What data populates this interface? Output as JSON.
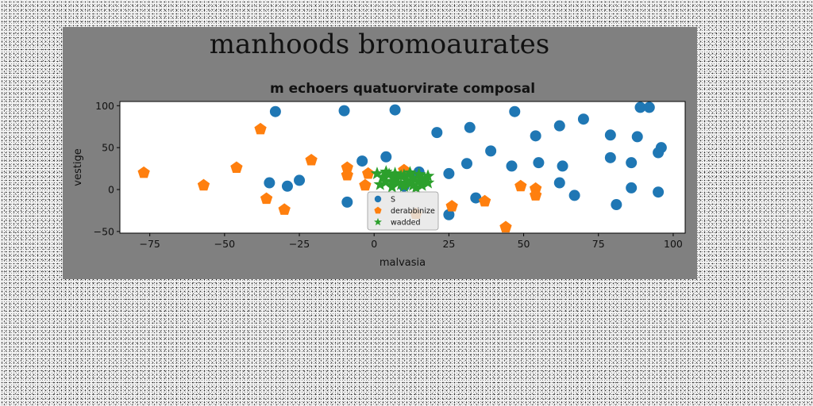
{
  "chart_data": {
    "type": "scatter",
    "suptitle": "manhoods bromoaurates",
    "title": "m echoers quatuorvirate composal",
    "xlabel": "malvasia",
    "ylabel": "vestige",
    "xlim": [
      -85,
      104
    ],
    "ylim": [
      -52,
      105
    ],
    "xticks": [
      -75,
      -50,
      -25,
      0,
      25,
      50,
      75,
      100
    ],
    "yticks": [
      -50,
      0,
      50,
      100
    ],
    "grid": false,
    "legend_position": "lower-center",
    "series": [
      {
        "name": "S",
        "color": "#1f77b4",
        "marker": "circle",
        "points": [
          [
            -33,
            93
          ],
          [
            -10,
            94
          ],
          [
            7,
            95
          ],
          [
            21,
            68
          ],
          [
            32,
            74
          ],
          [
            47,
            93
          ],
          [
            54,
            64
          ],
          [
            62,
            76
          ],
          [
            70,
            84
          ],
          [
            79,
            65
          ],
          [
            89,
            98
          ],
          [
            92,
            98
          ],
          [
            88,
            63
          ],
          [
            96,
            50
          ],
          [
            95,
            44
          ],
          [
            39,
            46
          ],
          [
            46,
            28
          ],
          [
            55,
            32
          ],
          [
            63,
            28
          ],
          [
            79,
            38
          ],
          [
            86,
            32
          ],
          [
            31,
            31
          ],
          [
            25,
            19
          ],
          [
            62,
            8
          ],
          [
            67,
            -7
          ],
          [
            86,
            2
          ],
          [
            95,
            -3
          ],
          [
            81,
            -18
          ],
          [
            -4,
            34
          ],
          [
            4,
            39
          ],
          [
            -35,
            8
          ],
          [
            -29,
            4
          ],
          [
            -25,
            11
          ],
          [
            -9,
            -15
          ],
          [
            15,
            21
          ],
          [
            10,
            4
          ],
          [
            34,
            -10
          ],
          [
            25,
            -30
          ]
        ]
      },
      {
        "name": "derabbinize",
        "color": "#ff7f0e",
        "marker": "pentagon",
        "points": [
          [
            -77,
            20
          ],
          [
            -57,
            5
          ],
          [
            -46,
            26
          ],
          [
            -38,
            72
          ],
          [
            -36,
            -11
          ],
          [
            -30,
            -24
          ],
          [
            -21,
            35
          ],
          [
            -9,
            26
          ],
          [
            -9,
            17
          ],
          [
            -3,
            5
          ],
          [
            -2,
            19
          ],
          [
            10,
            23
          ],
          [
            14,
            -29
          ],
          [
            26,
            -20
          ],
          [
            37,
            -14
          ],
          [
            44,
            -45
          ],
          [
            49,
            4
          ],
          [
            54,
            1
          ],
          [
            54,
            -7
          ]
        ]
      },
      {
        "name": "wadded",
        "color": "#2ca02c",
        "marker": "star",
        "points": [
          [
            1,
            19
          ],
          [
            3,
            15
          ],
          [
            4,
            9
          ],
          [
            5,
            18
          ],
          [
            6,
            3
          ],
          [
            7,
            12
          ],
          [
            8,
            8
          ],
          [
            9,
            16
          ],
          [
            10,
            4
          ],
          [
            11,
            11
          ],
          [
            12,
            7
          ],
          [
            13,
            14
          ],
          [
            14,
            2
          ],
          [
            15,
            10
          ],
          [
            16,
            5
          ],
          [
            17,
            13
          ],
          [
            18,
            8
          ],
          [
            2,
            6
          ],
          [
            4,
            21
          ],
          [
            7,
            19
          ],
          [
            10,
            17
          ],
          [
            12,
            20
          ],
          [
            15,
            18
          ],
          [
            18,
            16
          ],
          [
            6,
            10
          ],
          [
            9,
            6
          ],
          [
            13,
            5
          ],
          [
            16,
            12
          ]
        ]
      }
    ]
  }
}
